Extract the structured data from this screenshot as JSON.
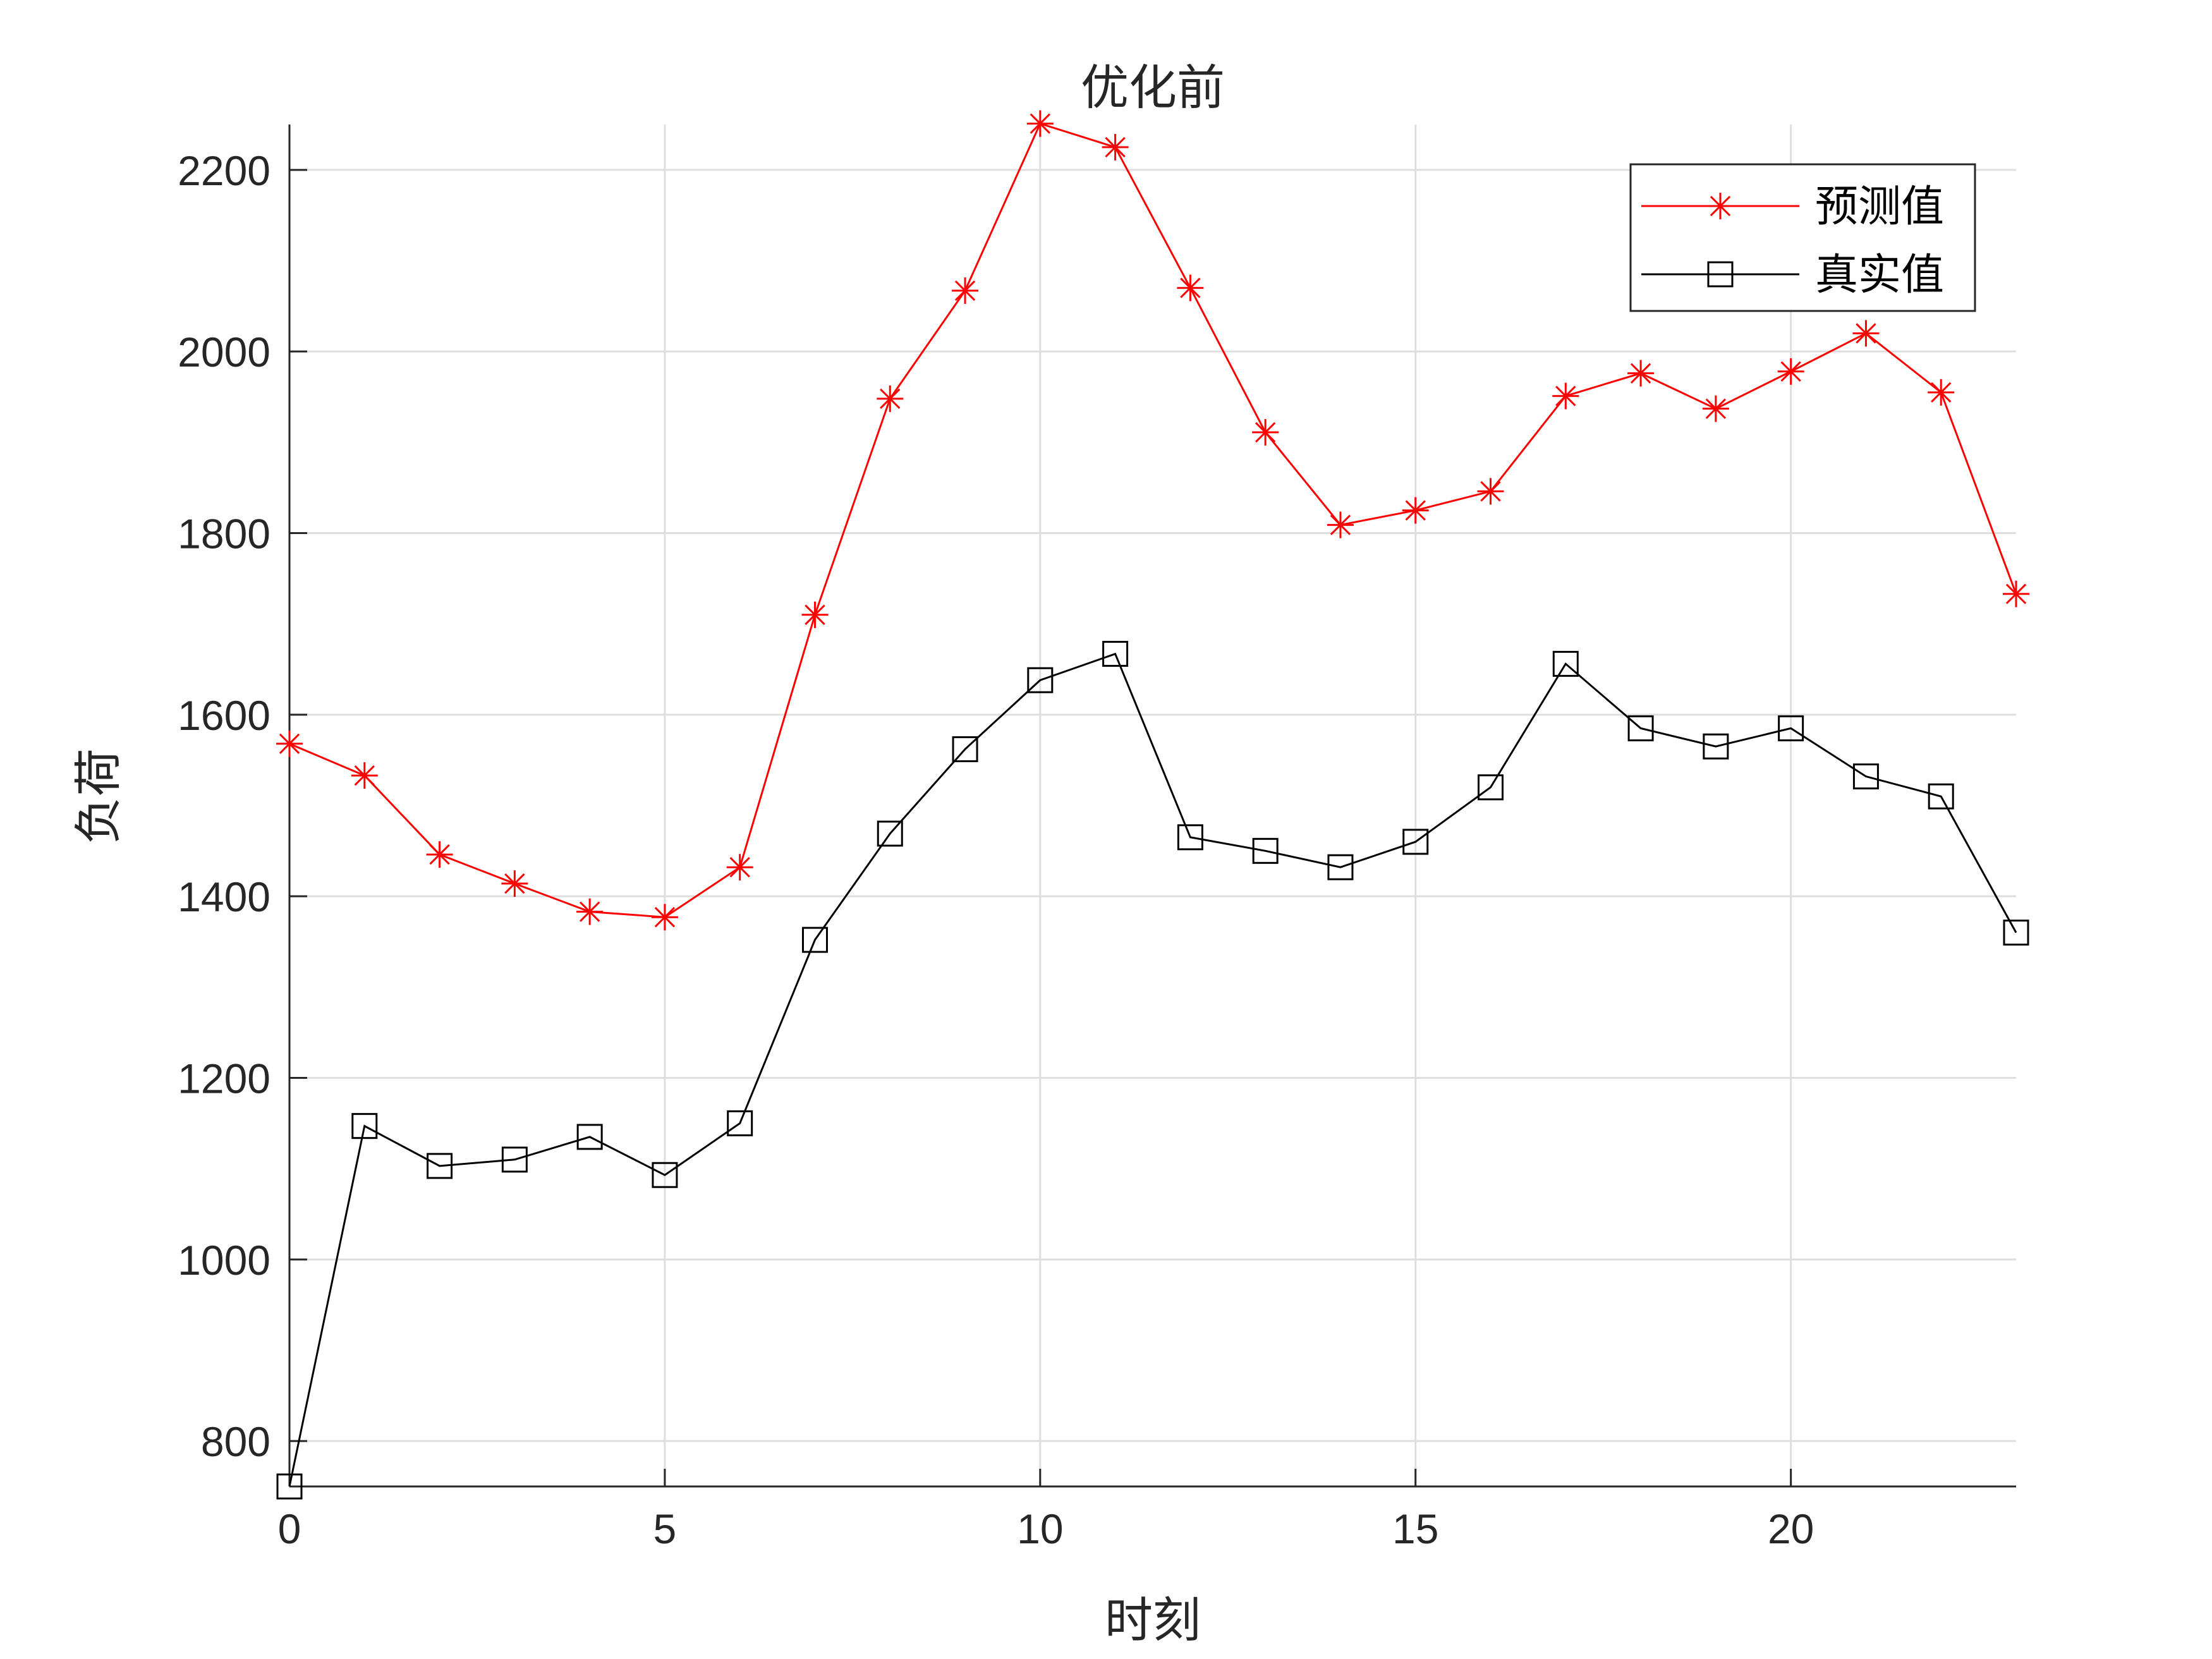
{
  "chart_data": {
    "type": "line",
    "title": "优化前",
    "xlabel": "时刻",
    "ylabel": "负荷",
    "xlim": [
      0,
      23
    ],
    "ylim": [
      750,
      2250
    ],
    "xticks": [
      0,
      5,
      10,
      15,
      20
    ],
    "yticks": [
      800,
      1000,
      1200,
      1400,
      1600,
      1800,
      2000,
      2200
    ],
    "grid": true,
    "legend_position": "top-right",
    "x": [
      0,
      1,
      2,
      3,
      4,
      5,
      6,
      7,
      8,
      9,
      10,
      11,
      12,
      13,
      14,
      15,
      16,
      17,
      18,
      19,
      20,
      21,
      22,
      23
    ],
    "series": [
      {
        "name": "预测值",
        "color": "#ff0000",
        "marker": "asterisk",
        "values": [
          1568,
          1533,
          1446,
          1414,
          1383,
          1377,
          1432,
          1710,
          1948,
          2067,
          2251,
          2225,
          2070,
          1911,
          1809,
          1825,
          1846,
          1951,
          1976,
          1937,
          1978,
          2020,
          1955,
          1733
        ]
      },
      {
        "name": "真实值",
        "color": "#000000",
        "marker": "square",
        "values": [
          750,
          1147,
          1103,
          1110,
          1135,
          1093,
          1150,
          1352,
          1469,
          1562,
          1638,
          1667,
          1465,
          1450,
          1432,
          1460,
          1520,
          1656,
          1585,
          1565,
          1585,
          1532,
          1510,
          1360
        ]
      }
    ]
  }
}
